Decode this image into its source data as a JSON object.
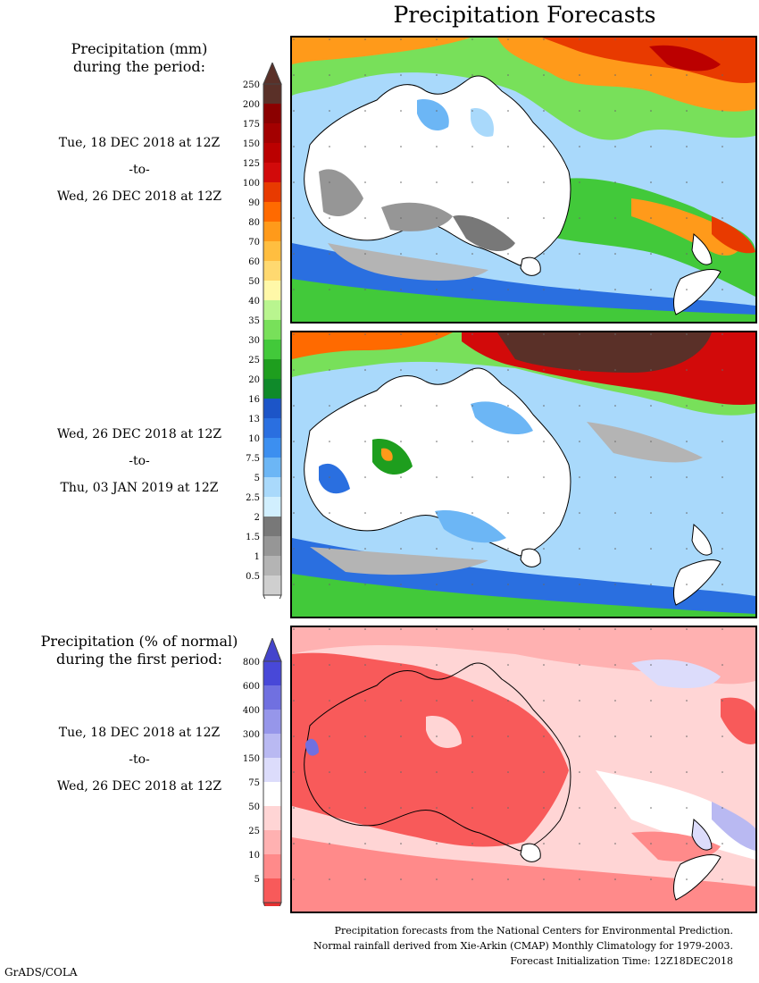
{
  "title": "Precipitation Forecasts",
  "left_panel": {
    "precip_heading": [
      "Precipitation (mm)",
      "during the period:"
    ],
    "period1": {
      "start": "Tue, 18 DEC 2018 at 12Z",
      "to": "-to-",
      "end": "Wed, 26 DEC 2018 at 12Z"
    },
    "period2": {
      "start": "Wed, 26 DEC 2018 at 12Z",
      "to": "-to-",
      "end": "Thu, 03 JAN 2019 at 12Z"
    },
    "pct_heading": [
      "Precipitation (% of normal)",
      "during the first period:"
    ],
    "period3": {
      "start": "Tue, 18 DEC 2018 at 12Z",
      "to": "-to-",
      "end": "Wed, 26 DEC 2018 at 12Z"
    }
  },
  "precip_scale": {
    "labels": [
      "250",
      "200",
      "175",
      "150",
      "125",
      "100",
      "90",
      "80",
      "70",
      "60",
      "50",
      "40",
      "35",
      "30",
      "25",
      "20",
      "16",
      "13",
      "10",
      "7.5",
      "5",
      "2.5",
      "2",
      "1.5",
      "1",
      "0.5"
    ],
    "colors": [
      "#5a3028",
      "#8b0000",
      "#a30000",
      "#bb0000",
      "#d20a0a",
      "#e83a00",
      "#ff6a00",
      "#ff9a1a",
      "#ffbe40",
      "#ffd970",
      "#fff8a8",
      "#b9f58f",
      "#78e05a",
      "#42c93a",
      "#1e9e1e",
      "#0f8a2a",
      "#1c55c8",
      "#2a6fe0",
      "#3c8ff0",
      "#6cb6f5",
      "#a9d9fb",
      "#d1effe",
      "#787878",
      "#969696",
      "#b4b4b4",
      "#cfcfcf"
    ],
    "top_arrow_color": "#5a3028",
    "bottom_arrow_color": "#ffffff"
  },
  "pct_scale": {
    "labels": [
      "800",
      "600",
      "400",
      "300",
      "150",
      "75",
      "50",
      "25",
      "10",
      "5"
    ],
    "colors": [
      "#4848d8",
      "#7070e0",
      "#9696ea",
      "#b9b9f2",
      "#dcdcfb",
      "#ffffff",
      "#ffd5d5",
      "#ffb1b1",
      "#ff8a8a",
      "#f85a5a"
    ],
    "top_arrow_color": "#4444cc",
    "bottom_arrow_color": "#e83030"
  },
  "footer": [
    "Precipitation forecasts from the National Centers for Environmental Prediction.",
    "Normal rainfall derived from Xie-Arkin (CMAP) Monthly Climatology for 1979-2003.",
    "Forecast Initialization Time: 12Z18DEC2018"
  ],
  "credit": "GrADS/COLA"
}
